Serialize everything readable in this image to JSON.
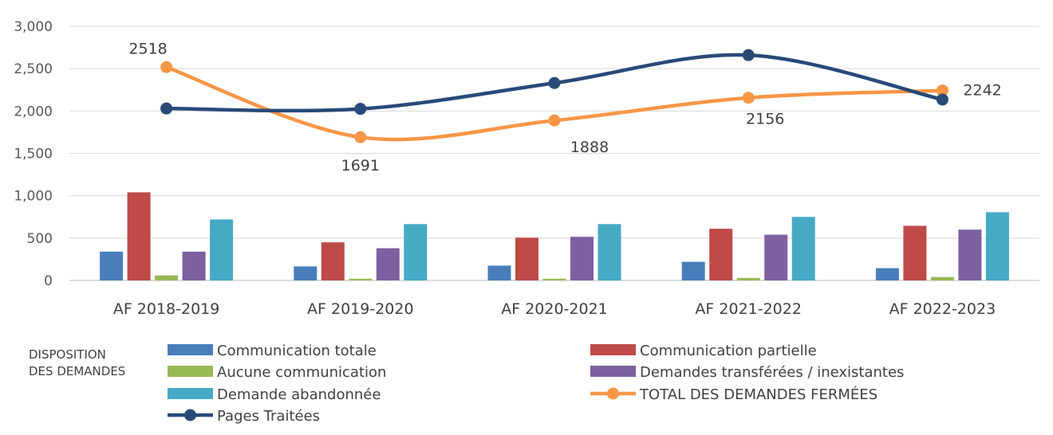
{
  "chart_data": {
    "type": "bar",
    "categories": [
      "AF 2018-2019",
      "AF 2019-2020",
      "AF 2020-2021",
      "AF 2021-2022",
      "AF 2022-2023"
    ],
    "ylim": [
      0,
      3000
    ],
    "yticks": [
      0,
      500,
      1000,
      1500,
      2000,
      2500,
      3000
    ],
    "ytick_labels": [
      "0",
      "500",
      "1,000",
      "1,500",
      "2,000",
      "2,500",
      "3,000"
    ],
    "grid": true,
    "legend_title": "DISPOSITION\nDES DEMANDES",
    "legend_placement": "bottom",
    "series": [
      {
        "name": "Communication totale",
        "kind": "bar",
        "color": "#4a7ebb",
        "values": [
          340,
          165,
          175,
          220,
          145
        ]
      },
      {
        "name": "Communication partielle",
        "kind": "bar",
        "color": "#be4b48",
        "values": [
          1040,
          450,
          505,
          610,
          645
        ]
      },
      {
        "name": "Aucune communication",
        "kind": "bar",
        "color": "#98b954",
        "values": [
          60,
          20,
          20,
          30,
          40
        ]
      },
      {
        "name": "Demandes transférées / inexistantes",
        "kind": "bar",
        "color": "#7d60a0",
        "values": [
          340,
          380,
          515,
          540,
          600
        ]
      },
      {
        "name": "Demande abandonnée",
        "kind": "bar",
        "color": "#46aac5",
        "values": [
          720,
          665,
          665,
          750,
          805
        ]
      },
      {
        "name": "TOTAL DES DEMANDES FERMÉES",
        "kind": "line",
        "color": "#f79646",
        "values": [
          2518,
          1691,
          1888,
          2156,
          2242
        ],
        "data_labels": [
          "2518",
          "1691",
          "1888",
          "2156",
          "2242"
        ]
      },
      {
        "name": "Pages Traitées",
        "kind": "line",
        "color": "#284a78",
        "values": [
          2030,
          2025,
          2330,
          2660,
          2135
        ]
      }
    ]
  }
}
